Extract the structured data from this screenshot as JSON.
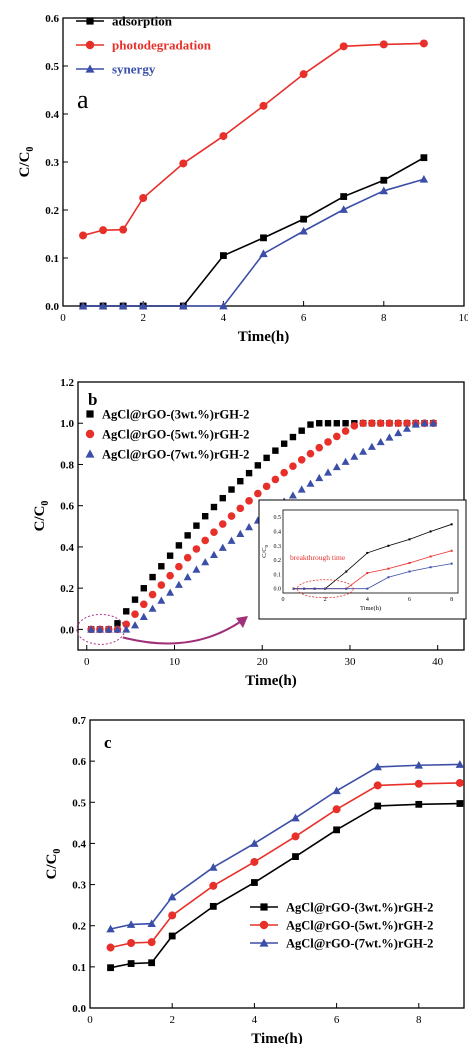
{
  "chart_data": [
    {
      "type": "line",
      "panel_label": "a",
      "xlabel": "Time(h)",
      "ylabel": "C/C",
      "ylabel_sub": "0",
      "xlim": [
        0,
        10
      ],
      "ylim": [
        0.0,
        0.6
      ],
      "x_ticks": [
        "0",
        "2",
        "4",
        "6",
        "8",
        "10"
      ],
      "y_ticks": [
        "0.0",
        "0.1",
        "0.2",
        "0.3",
        "0.4",
        "0.5",
        "0.6"
      ],
      "legend_position": "top-left",
      "series": [
        {
          "name": "adsorption",
          "color": "#000000",
          "marker": "square",
          "x": [
            0.5,
            1,
            1.5,
            2,
            3,
            4,
            5,
            6,
            7,
            8,
            9
          ],
          "y": [
            0,
            0,
            0,
            0,
            0,
            0.105,
            0.142,
            0.181,
            0.228,
            0.262,
            0.309
          ]
        },
        {
          "name": "photodegradation",
          "color": "#e8302a",
          "marker": "circle",
          "x": [
            0.5,
            1,
            1.5,
            2,
            3,
            4,
            5,
            6,
            7,
            8,
            9
          ],
          "y": [
            0.147,
            0.158,
            0.159,
            0.225,
            0.297,
            0.354,
            0.417,
            0.483,
            0.541,
            0.545,
            0.547
          ]
        },
        {
          "name": "synergy",
          "color": "#3b4fa8",
          "marker": "triangle",
          "x": [
            0.5,
            1,
            1.5,
            2,
            3,
            4,
            5,
            6,
            7,
            8,
            9
          ],
          "y": [
            0,
            0,
            0,
            0,
            0,
            0,
            0.109,
            0.156,
            0.201,
            0.24,
            0.264
          ]
        }
      ]
    },
    {
      "type": "scatter",
      "panel_label": "b",
      "xlabel": "Time(h)",
      "ylabel": "C/C",
      "ylabel_sub": "0",
      "xlim": [
        -1,
        43
      ],
      "ylim": [
        -0.1,
        1.2
      ],
      "x_ticks": [
        "0",
        "10",
        "20",
        "30",
        "40"
      ],
      "y_ticks": [
        "0.0",
        "0.2",
        "0.4",
        "0.6",
        "0.8",
        "1.0",
        "1.2"
      ],
      "legend_position": "top-left",
      "series": [
        {
          "name": "AgCl@rGO-(3wt.%)rGH-2",
          "color": "#000000",
          "marker": "square"
        },
        {
          "name": "AgCl@rGO-(5wt.%)rGH-2",
          "color": "#e8302a",
          "marker": "circle"
        },
        {
          "name": "AgCl@rGO-(7wt.%)rGH-2",
          "color": "#3b4fa8",
          "marker": "triangle"
        }
      ],
      "inset": {
        "annotation": "breakthrough time",
        "xlabel": "Time(h)",
        "ylabel": "C/C",
        "ylabel_sub": "0",
        "xlim": [
          0,
          8.3
        ],
        "ylim": [
          -0.03,
          0.55
        ],
        "x_ticks": [
          "0",
          "2",
          "4",
          "6",
          "8"
        ],
        "y_ticks": [
          "0.0",
          "0.1",
          "0.2",
          "0.3",
          "0.4",
          "0.5"
        ],
        "series": [
          {
            "color": "#000000",
            "x": [
              0.5,
              1,
              1.5,
              2,
              3,
              4,
              5,
              6,
              7,
              8
            ],
            "y": [
              0,
              0,
              0,
              0,
              0.12,
              0.25,
              0.3,
              0.345,
              0.4,
              0.45
            ]
          },
          {
            "color": "#e8302a",
            "x": [
              0.5,
              1,
              1.5,
              2,
              3,
              4,
              5,
              6,
              7,
              8
            ],
            "y": [
              0,
              0,
              0,
              0,
              0,
              0.11,
              0.14,
              0.18,
              0.225,
              0.265
            ]
          },
          {
            "color": "#3b4fa8",
            "x": [
              0.5,
              1,
              1.5,
              2,
              3,
              4,
              5,
              6,
              7,
              8
            ],
            "y": [
              0,
              0,
              0,
              0,
              0,
              0,
              0.08,
              0.12,
              0.15,
              0.175
            ]
          }
        ]
      }
    },
    {
      "type": "line",
      "panel_label": "c",
      "xlabel": "Time(h)",
      "ylabel": "C/C",
      "ylabel_sub": "0",
      "xlim": [
        0,
        9.1
      ],
      "ylim": [
        0.0,
        0.7
      ],
      "x_ticks": [
        "0",
        "2",
        "4",
        "6",
        "8"
      ],
      "y_ticks": [
        "0.0",
        "0.1",
        "0.2",
        "0.3",
        "0.4",
        "0.5",
        "0.6",
        "0.7"
      ],
      "legend_position": "bottom-right",
      "series": [
        {
          "name": "AgCl@rGO-(3wt.%)rGH-2",
          "color": "#000000",
          "marker": "square",
          "x": [
            0.5,
            1,
            1.5,
            2,
            3,
            4,
            5,
            6,
            7,
            8,
            9
          ],
          "y": [
            0.098,
            0.108,
            0.11,
            0.175,
            0.247,
            0.305,
            0.368,
            0.433,
            0.491,
            0.495,
            0.497
          ]
        },
        {
          "name": "AgCl@rGO-(5wt.%)rGH-2",
          "color": "#e8302a",
          "marker": "circle",
          "x": [
            0.5,
            1,
            1.5,
            2,
            3,
            4,
            5,
            6,
            7,
            8,
            9
          ],
          "y": [
            0.147,
            0.158,
            0.16,
            0.225,
            0.297,
            0.355,
            0.417,
            0.483,
            0.541,
            0.545,
            0.547
          ]
        },
        {
          "name": "AgCl@rGO-(7wt.%)rGH-2",
          "color": "#3b4fa8",
          "marker": "triangle",
          "x": [
            0.5,
            1,
            1.5,
            2,
            3,
            4,
            5,
            6,
            7,
            8,
            9
          ],
          "y": [
            0.192,
            0.203,
            0.205,
            0.27,
            0.342,
            0.4,
            0.462,
            0.528,
            0.586,
            0.59,
            0.592
          ]
        }
      ]
    }
  ]
}
